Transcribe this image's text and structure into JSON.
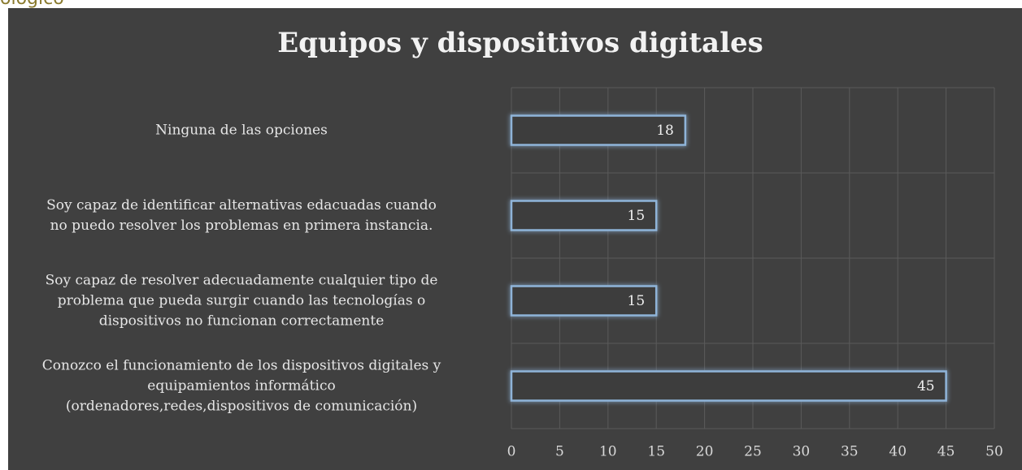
{
  "header_fragment": "ológico",
  "chart_data": {
    "type": "barh",
    "title": "Equipos y dispositivos digitales",
    "categories": [
      "Ninguna de las opciones",
      "Soy capaz de identificar alternativas edacuadas cuando\nno puedo resolver los problemas en primera instancia.",
      "Soy capaz de resolver adecuadamente cualquier tipo de\nproblema que pueda surgir cuando las tecnologías o\ndispositivos no funcionan correctamente",
      "Conozco el funcionamiento de los dispositivos digitales y\nequipamientos informático\n(ordenadores,redes,dispositivos de comunicación)"
    ],
    "values": [
      18,
      15,
      15,
      45
    ],
    "color": "#8fb4d9",
    "xlim": [
      0,
      50
    ],
    "xticks": [
      0,
      5,
      10,
      15,
      20,
      25,
      30,
      35,
      40,
      45,
      50
    ],
    "grid": true
  }
}
